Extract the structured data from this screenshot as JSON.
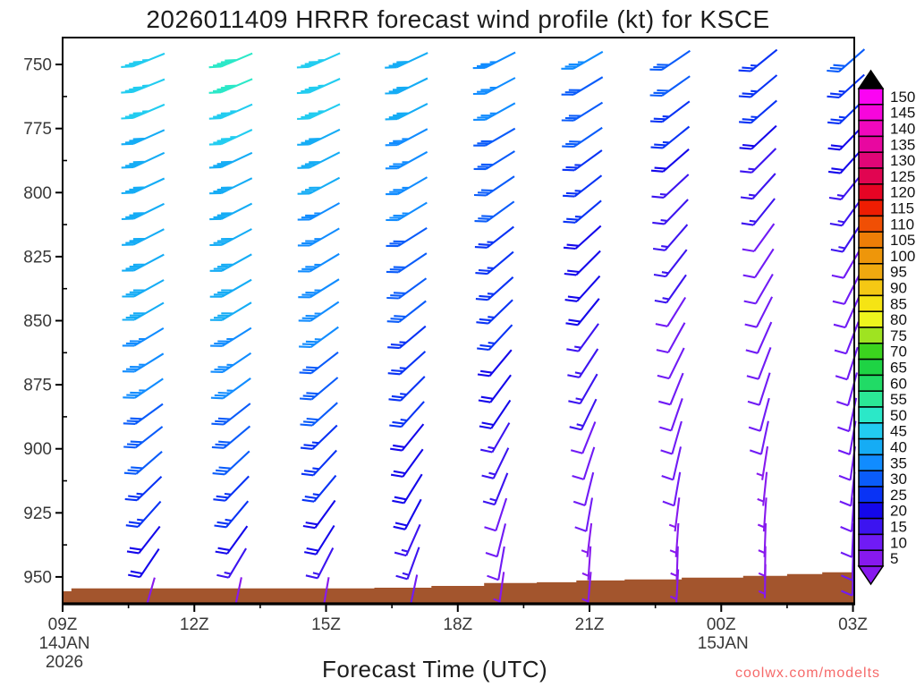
{
  "title": "2026011409 HRRR forecast wind profile (kt) for KSCE",
  "xlabel": "Forecast Time (UTC)",
  "watermark": "coolwx.com/modelts",
  "axes": {
    "pressure_major_ticks": [
      750,
      775,
      800,
      825,
      850,
      875,
      900,
      925,
      950
    ],
    "pressure_minor_ticks": [
      762.5,
      787.5,
      812.5,
      837.5,
      862.5,
      887.5,
      912.5,
      937.5
    ],
    "time_major_ticks": [
      {
        "hour": 9,
        "label": "09Z",
        "sub": [
          "14JAN",
          "2026"
        ]
      },
      {
        "hour": 12,
        "label": "12Z",
        "sub": []
      },
      {
        "hour": 15,
        "label": "15Z",
        "sub": []
      },
      {
        "hour": 18,
        "label": "18Z",
        "sub": []
      },
      {
        "hour": 21,
        "label": "21Z",
        "sub": []
      },
      {
        "hour": 24,
        "label": "00Z",
        "sub": [
          "15JAN"
        ]
      },
      {
        "hour": 27,
        "label": "03Z",
        "sub": []
      }
    ],
    "time_minor_ticks": [
      10.5,
      13.5,
      16.5,
      19.5,
      22.5,
      25.5
    ]
  },
  "colorbar": {
    "unit": "kt",
    "values": [
      5,
      10,
      15,
      20,
      25,
      30,
      35,
      40,
      45,
      50,
      55,
      60,
      65,
      70,
      75,
      80,
      85,
      90,
      95,
      100,
      105,
      110,
      115,
      120,
      125,
      130,
      135,
      140,
      145,
      150
    ],
    "colors": [
      "#8719EE",
      "#701BF5",
      "#3C14F0",
      "#1407EB",
      "#0933F5",
      "#0A5CFA",
      "#118CFF",
      "#15ACF5",
      "#22CCF0",
      "#2BE8C8",
      "#2BE896",
      "#21DB66",
      "#1ED344",
      "#3BD41E",
      "#9FE321",
      "#EEF51D",
      "#F5E414",
      "#F5C814",
      "#F0A90F",
      "#EE960A",
      "#EE7E07",
      "#F04F05",
      "#EE1D02",
      "#E60424",
      "#E10551",
      "#E00677",
      "#E807A0",
      "#F008BE",
      "#F706DC",
      "#FB04F3"
    ],
    "over_arrow_color": "#000000",
    "under_arrow_color": "#8719EE"
  },
  "terrain": {
    "color": "#A3552D",
    "hours": [
      9.0,
      9.2,
      16.1,
      17.4,
      18.6,
      19.8,
      20.7,
      21.8,
      23.1,
      24.5,
      25.5,
      26.3
    ],
    "surface_pressure_hpa": [
      955.6,
      954.5,
      954.2,
      953.5,
      952.4,
      952.1,
      951.4,
      951.0,
      950.3,
      949.6,
      948.9,
      948.2
    ]
  },
  "chart_data": {
    "type": "wind-barb-profile",
    "speed_unit": "kt",
    "x_axis": {
      "label": "Forecast Time (UTC)",
      "range_hours_utc": [
        9,
        27
      ],
      "major_step_hours": 3
    },
    "y_axis": {
      "label": "pressure (hPa)",
      "range_hpa": [
        739.5,
        960.5
      ],
      "inverted": true
    },
    "levels_hpa": [
      748,
      758,
      768,
      778,
      787,
      797,
      807,
      817,
      827,
      837,
      846,
      856,
      866,
      876,
      886,
      895,
      905,
      915,
      925,
      935,
      944
    ],
    "columns": [
      {
        "hour": 11,
        "label": "11Z",
        "speeds_kt": [
          45,
          45,
          45,
          40,
          40,
          40,
          40,
          40,
          40,
          40,
          40,
          35,
          35,
          35,
          30,
          30,
          30,
          25,
          25,
          20,
          20
        ],
        "dirs_deg": [
          248,
          248,
          247,
          246,
          245,
          245,
          244,
          243,
          242,
          241,
          240,
          239,
          238,
          236,
          234,
          232,
          229,
          226,
          222,
          218,
          214
        ],
        "surface": {
          "p_hpa": 956,
          "speed_kt": 5,
          "dir_deg": 196
        }
      },
      {
        "hour": 13,
        "label": "13Z",
        "speeds_kt": [
          50,
          50,
          45,
          45,
          40,
          40,
          40,
          40,
          40,
          40,
          40,
          35,
          35,
          35,
          30,
          30,
          30,
          25,
          25,
          20,
          15
        ],
        "dirs_deg": [
          247,
          247,
          246,
          245,
          245,
          244,
          243,
          242,
          241,
          240,
          239,
          238,
          236,
          234,
          232,
          230,
          227,
          224,
          220,
          216,
          211
        ],
        "surface": {
          "p_hpa": 956,
          "speed_kt": 5,
          "dir_deg": 192
        }
      },
      {
        "hour": 15,
        "label": "15Z",
        "speeds_kt": [
          45,
          45,
          45,
          40,
          40,
          40,
          35,
          35,
          35,
          35,
          35,
          35,
          30,
          30,
          30,
          25,
          25,
          25,
          20,
          20,
          15
        ],
        "dirs_deg": [
          246,
          246,
          245,
          244,
          243,
          242,
          241,
          240,
          239,
          238,
          236,
          234,
          232,
          230,
          228,
          226,
          223,
          220,
          216,
          212,
          207
        ],
        "surface": {
          "p_hpa": 956,
          "speed_kt": 5,
          "dir_deg": 190
        }
      },
      {
        "hour": 17,
        "label": "17Z",
        "speeds_kt": [
          40,
          40,
          40,
          35,
          35,
          35,
          35,
          30,
          30,
          30,
          30,
          25,
          25,
          25,
          25,
          20,
          20,
          20,
          20,
          15,
          15
        ],
        "dirs_deg": [
          245,
          244,
          243,
          242,
          241,
          240,
          239,
          238,
          236,
          234,
          232,
          230,
          228,
          225,
          222,
          219,
          216,
          212,
          208,
          204,
          200
        ],
        "surface": {
          "p_hpa": 955,
          "speed_kt": 10,
          "dir_deg": 192
        }
      },
      {
        "hour": 19,
        "label": "19Z",
        "speeds_kt": [
          35,
          35,
          35,
          30,
          30,
          30,
          30,
          25,
          25,
          25,
          25,
          25,
          20,
          20,
          20,
          15,
          15,
          15,
          10,
          10,
          10
        ],
        "dirs_deg": [
          243,
          242,
          241,
          240,
          238,
          236,
          234,
          232,
          230,
          228,
          226,
          223,
          220,
          217,
          214,
          210,
          206,
          202,
          198,
          194,
          190
        ],
        "surface": {
          "p_hpa": 954,
          "speed_kt": 5,
          "dir_deg": 188
        }
      },
      {
        "hour": 21,
        "label": "21Z",
        "speeds_kt": [
          35,
          30,
          30,
          30,
          25,
          25,
          25,
          20,
          20,
          20,
          20,
          15,
          15,
          15,
          15,
          10,
          10,
          10,
          10,
          5,
          5
        ],
        "dirs_deg": [
          240,
          239,
          238,
          236,
          234,
          232,
          230,
          228,
          225,
          222,
          219,
          216,
          213,
          210,
          206,
          202,
          198,
          194,
          190,
          187,
          184
        ],
        "surface": {
          "p_hpa": 954,
          "speed_kt": 5,
          "dir_deg": 185
        }
      },
      {
        "hour": 23,
        "label": "23Z",
        "speeds_kt": [
          30,
          30,
          25,
          25,
          20,
          15,
          15,
          15,
          15,
          15,
          10,
          10,
          10,
          10,
          10,
          10,
          10,
          10,
          5,
          5,
          5
        ],
        "dirs_deg": [
          236,
          235,
          233,
          231,
          229,
          227,
          224,
          221,
          218,
          215,
          212,
          209,
          206,
          202,
          199,
          196,
          193,
          190,
          187,
          184,
          182
        ],
        "surface": {
          "p_hpa": 953,
          "speed_kt": 5,
          "dir_deg": 183
        }
      },
      {
        "hour": 25,
        "label": "01Z",
        "speeds_kt": [
          25,
          25,
          25,
          20,
          15,
          15,
          15,
          10,
          10,
          10,
          10,
          10,
          10,
          10,
          10,
          10,
          5,
          5,
          5,
          5,
          5
        ],
        "dirs_deg": [
          231,
          230,
          229,
          227,
          225,
          222,
          219,
          216,
          213,
          210,
          207,
          204,
          201,
          198,
          195,
          192,
          189,
          186,
          184,
          182,
          181
        ],
        "surface": {
          "p_hpa": 951,
          "speed_kt": 5,
          "dir_deg": 181
        }
      },
      {
        "hour": 27,
        "label": "03Z",
        "speeds_kt": [
          30,
          25,
          25,
          20,
          20,
          15,
          15,
          15,
          10,
          10,
          10,
          10,
          10,
          10,
          10,
          10,
          10,
          10,
          10,
          10,
          10
        ],
        "dirs_deg": [
          229,
          228,
          226,
          224,
          222,
          219,
          216,
          213,
          210,
          207,
          204,
          201,
          198,
          195,
          192,
          190,
          188,
          186,
          184,
          183,
          182
        ],
        "surface": {
          "p_hpa": 950,
          "speed_kt": 10,
          "dir_deg": 182
        }
      }
    ]
  }
}
